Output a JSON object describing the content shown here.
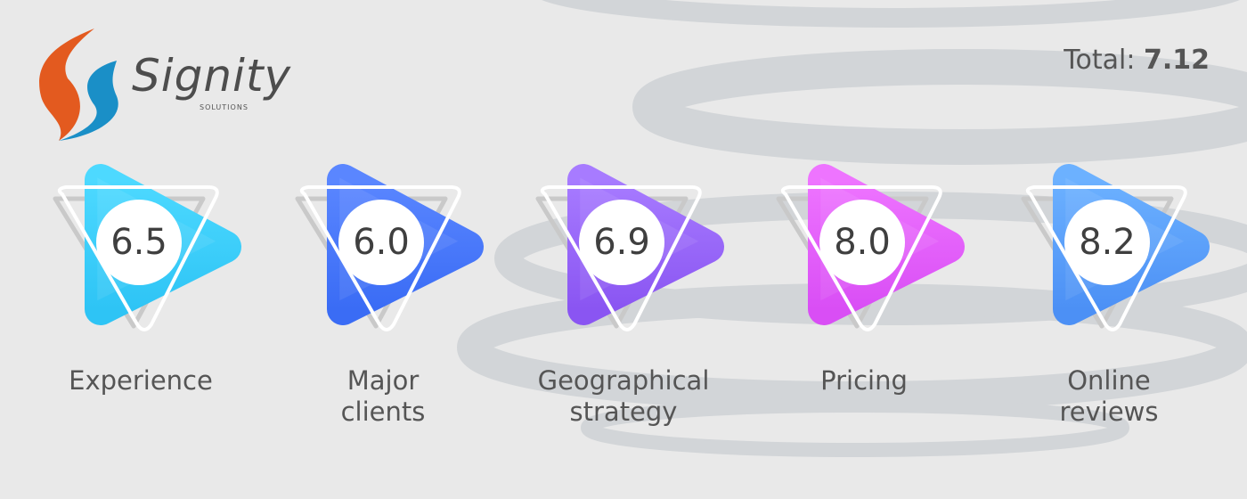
{
  "logo": {
    "name": "Signity",
    "tagline": "SOLUTIONS"
  },
  "total": {
    "label": "Total:",
    "value": "7.12"
  },
  "scores": [
    {
      "value": "6.5",
      "label_lines": [
        "Experience"
      ]
    },
    {
      "value": "6.0",
      "label_lines": [
        "Major",
        "clients"
      ]
    },
    {
      "value": "6.9",
      "label_lines": [
        "Geographical",
        "strategy"
      ]
    },
    {
      "value": "8.0",
      "label_lines": [
        "Pricing"
      ]
    },
    {
      "value": "8.2",
      "label_lines": [
        "Online",
        "reviews"
      ]
    }
  ]
}
